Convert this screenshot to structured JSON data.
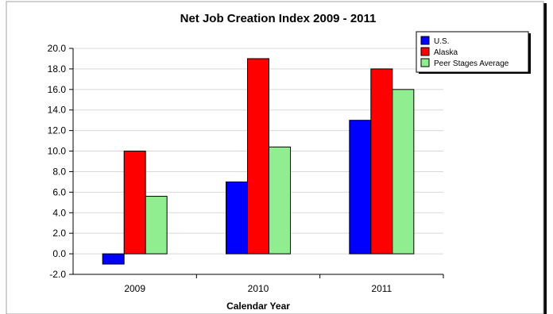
{
  "chart_data": {
    "type": "bar",
    "title": "Net Job Creation Index  2009 - 2011",
    "xlabel": "Calendar Year",
    "ylabel": "",
    "categories": [
      "2009",
      "2010",
      "2011"
    ],
    "series": [
      {
        "name": "U.S.",
        "color": "#0000ff",
        "values": [
          -1,
          7,
          13
        ]
      },
      {
        "name": "Alaska",
        "color": "#ff0000",
        "values": [
          10,
          19,
          18
        ]
      },
      {
        "name": "Peer Stages Average",
        "color": "#90ee90",
        "values": [
          5.6,
          10.4,
          16
        ]
      }
    ],
    "ylim": [
      -2,
      20
    ],
    "yticks": [
      "-2.0",
      "0.0",
      "2.0",
      "4.0",
      "6.0",
      "8.0",
      "10.0",
      "12.0",
      "14.0",
      "16.0",
      "18.0",
      "20.0"
    ],
    "grid": true,
    "legend": "top-right"
  }
}
